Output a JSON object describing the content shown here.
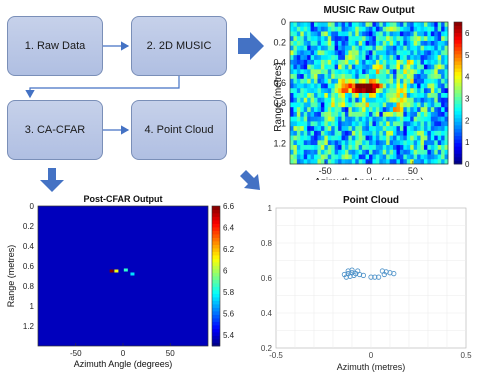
{
  "flow": {
    "steps": [
      "1. Raw Data",
      "2. 2D MUSIC",
      "3. CA-CFAR",
      "4. Point Cloud"
    ],
    "box_color": "#b4c3e5",
    "arrow_color": "#4472c4"
  },
  "chart_data": [
    {
      "id": "music",
      "type": "heatmap",
      "title": "MUSIC Raw Output",
      "xlabel": "Azimuth Angle (degrees)",
      "ylabel": "Range (metres)",
      "xticks": [
        -50,
        0,
        50
      ],
      "yticks": [
        0,
        0.2,
        0.4,
        0.6,
        0.8,
        1,
        1.2
      ],
      "xlim": [
        -90,
        90
      ],
      "ylim": [
        0,
        1.4
      ],
      "colorbar": {
        "ticks": [
          0,
          1,
          2,
          3,
          4,
          5,
          6
        ],
        "range": [
          0,
          6.5
        ]
      },
      "colormap": "jet",
      "peak": {
        "x": -5,
        "y": 0.65,
        "value": 6.5
      }
    },
    {
      "id": "cfar",
      "type": "heatmap",
      "title": "Post-CFAR Output",
      "xlabel": "Azimuth Angle (degrees)",
      "ylabel": "Range (metres)",
      "xticks": [
        -50,
        0,
        50
      ],
      "yticks": [
        0,
        0.2,
        0.4,
        0.6,
        0.8,
        1,
        1.2
      ],
      "xlim": [
        -90,
        90
      ],
      "ylim": [
        0,
        1.4
      ],
      "colorbar": {
        "ticks": [
          5.4,
          5.6,
          5.8,
          6,
          6.2,
          6.4,
          6.6
        ],
        "range": [
          5.3,
          6.6
        ]
      },
      "background_value": 5.3,
      "detections": [
        {
          "x": -12,
          "y": 0.65,
          "value": 6.6
        },
        {
          "x": -7,
          "y": 0.65,
          "value": 6.1
        },
        {
          "x": 3,
          "y": 0.64,
          "value": 5.85
        },
        {
          "x": 10,
          "y": 0.68,
          "value": 5.75
        }
      ]
    },
    {
      "id": "cloud",
      "type": "scatter",
      "title": "Point Cloud",
      "xlabel": "Azimuth (metres)",
      "xticks": [
        -0.5,
        0,
        0.5
      ],
      "yticks": [
        0.2,
        0.4,
        0.6,
        0.8,
        1
      ],
      "xlim": [
        -0.5,
        0.5
      ],
      "ylim": [
        0.2,
        1
      ],
      "marker_color": "#4a90c8",
      "grid": true,
      "points": [
        [
          -0.14,
          0.62
        ],
        [
          -0.12,
          0.625
        ],
        [
          -0.1,
          0.63
        ],
        [
          -0.08,
          0.625
        ],
        [
          -0.06,
          0.62
        ],
        [
          -0.04,
          0.615
        ],
        [
          -0.13,
          0.605
        ],
        [
          -0.11,
          0.61
        ],
        [
          -0.09,
          0.615
        ],
        [
          -0.12,
          0.64
        ],
        [
          -0.1,
          0.645
        ],
        [
          -0.07,
          0.64
        ],
        [
          0.0,
          0.605
        ],
        [
          0.02,
          0.605
        ],
        [
          0.04,
          0.605
        ],
        [
          0.06,
          0.64
        ],
        [
          0.08,
          0.635
        ],
        [
          0.1,
          0.63
        ],
        [
          0.12,
          0.625
        ],
        [
          0.07,
          0.62
        ]
      ]
    }
  ]
}
